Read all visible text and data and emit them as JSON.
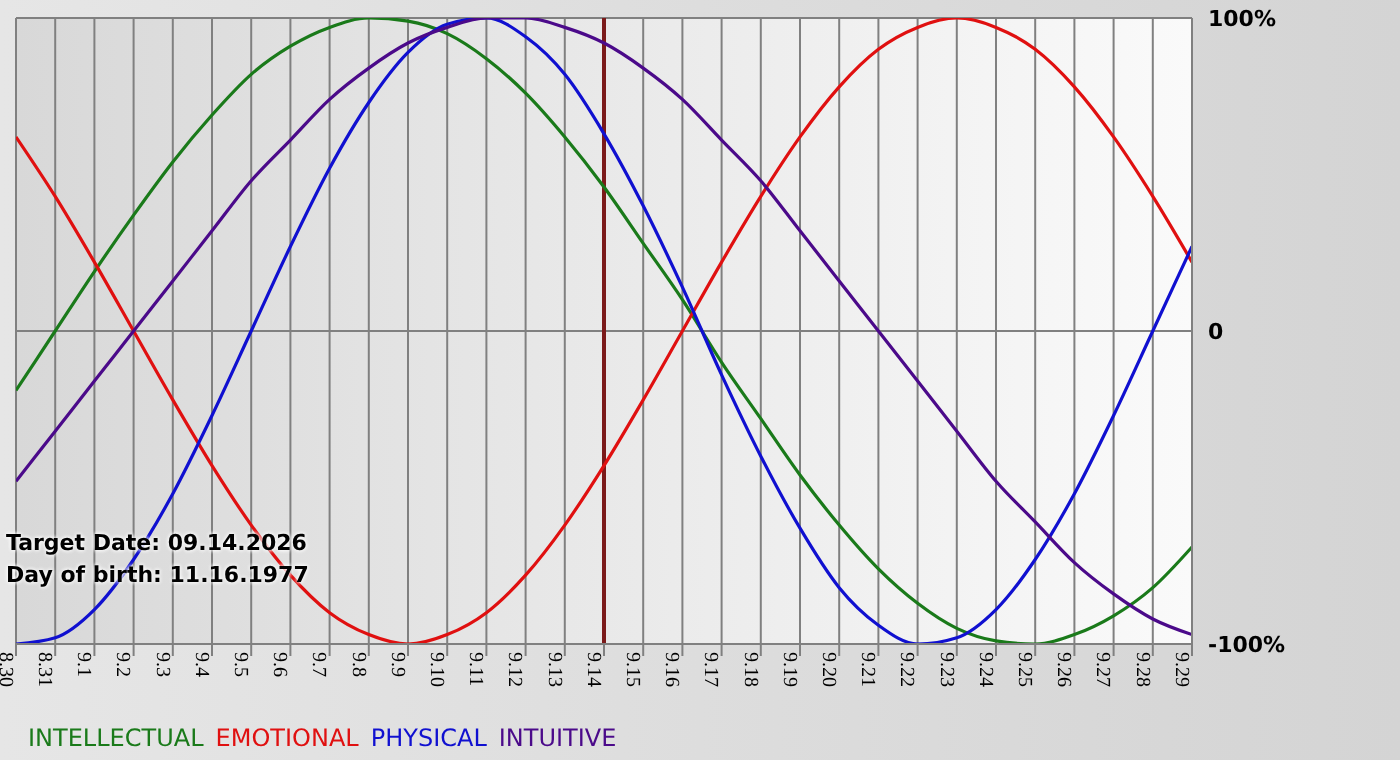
{
  "chart_data": {
    "type": "line",
    "annotations": [
      "Target Date: 09.14.2026",
      "Day of birth: 11.16.1977"
    ],
    "categories": [
      "8.30",
      "8.31",
      "9.1",
      "9.2",
      "9.3",
      "9.4",
      "9.5",
      "9.6",
      "9.7",
      "9.8",
      "9.9",
      "9.10",
      "9.11",
      "9.12",
      "9.13",
      "9.14",
      "9.15",
      "9.16",
      "9.17",
      "9.18",
      "9.19",
      "9.20",
      "9.21",
      "9.22",
      "9.23",
      "9.24",
      "9.25",
      "9.26",
      "9.27",
      "9.28",
      "9.29"
    ],
    "series": [
      {
        "name": "INTELLECTUAL",
        "color": "#1a7a1a",
        "values": [
          -19,
          0,
          19,
          37,
          54,
          69,
          82,
          91,
          97,
          100,
          99,
          95,
          87,
          76,
          62,
          46,
          28,
          10,
          -10,
          -28,
          -46,
          -62,
          -76,
          -87,
          -95,
          -99,
          -100,
          -97,
          -91,
          -82,
          -69
        ]
      },
      {
        "name": "EMOTIONAL",
        "color": "#e01010",
        "values": [
          62,
          43,
          22,
          0,
          -22,
          -43,
          -62,
          -78,
          -90,
          -97,
          -100,
          -97,
          -90,
          -78,
          -62,
          -43,
          -22,
          0,
          22,
          43,
          62,
          78,
          90,
          97,
          100,
          97,
          90,
          78,
          62,
          43,
          22
        ]
      },
      {
        "name": "PHYSICAL",
        "color": "#1010d0",
        "values": [
          -100,
          -98,
          -89,
          -73,
          -52,
          -27,
          0,
          27,
          52,
          73,
          89,
          98,
          100,
          94,
          82,
          63,
          40,
          14,
          -14,
          -40,
          -63,
          -82,
          -94,
          -100,
          -98,
          -89,
          -73,
          -52,
          -27,
          0,
          27
        ]
      },
      {
        "name": "INTUITIVE",
        "color": "#4b0a8a",
        "values": [
          -48,
          -32,
          -16,
          0,
          16,
          32,
          48,
          61,
          74,
          84,
          92,
          97,
          100,
          100,
          97,
          92,
          84,
          74,
          61,
          48,
          32,
          16,
          0,
          -16,
          -32,
          -48,
          -61,
          -74,
          -84,
          -92,
          -97
        ]
      }
    ],
    "ylim": [
      -100,
      100
    ],
    "yticks": [
      {
        "value": 100,
        "label": "100%"
      },
      0,
      {
        "value": -100,
        "label": "-100%"
      }
    ],
    "grid": true,
    "legend": "bottom left",
    "ref_lines": [
      {
        "axis": "x",
        "value": "9.14",
        "color": "#7b1a1a"
      }
    ]
  }
}
